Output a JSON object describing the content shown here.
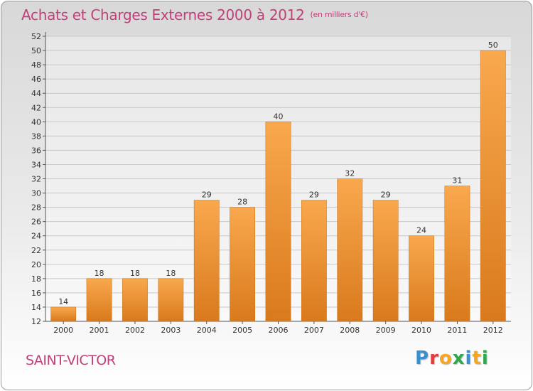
{
  "header": {
    "title": "Achats et Charges Externes 2000 à 2012",
    "unit": "(en milliers d'€)"
  },
  "footer": {
    "commune": "SAINT-VICTOR",
    "logo_letters": [
      {
        "char": "P",
        "color": "#3a8fd0"
      },
      {
        "char": "r",
        "color": "#e23c3c"
      },
      {
        "char": "o",
        "color": "#f5a623"
      },
      {
        "char": "x",
        "color": "#2fa84f"
      },
      {
        "char": "i",
        "color": "#3a8fd0"
      },
      {
        "char": "t",
        "color": "#f5a623"
      },
      {
        "char": "i",
        "color": "#2fa84f"
      }
    ]
  },
  "colors": {
    "bar_top": "#f9a84e",
    "bar_bottom": "#d97a1c",
    "grid": "#c8c8c8",
    "title": "#c0407a"
  },
  "chart_data": {
    "type": "bar",
    "title": "Achats et Charges Externes 2000 à 2012",
    "xlabel": "",
    "ylabel": "",
    "categories": [
      "2000",
      "2001",
      "2002",
      "2003",
      "2004",
      "2005",
      "2006",
      "2007",
      "2008",
      "2009",
      "2010",
      "2011",
      "2012"
    ],
    "values": [
      14,
      18,
      18,
      18,
      29,
      28,
      40,
      29,
      32,
      29,
      24,
      31,
      50
    ],
    "ylim": [
      12,
      52
    ],
    "ytick_step": 2,
    "grid": true,
    "data_labels": true
  }
}
